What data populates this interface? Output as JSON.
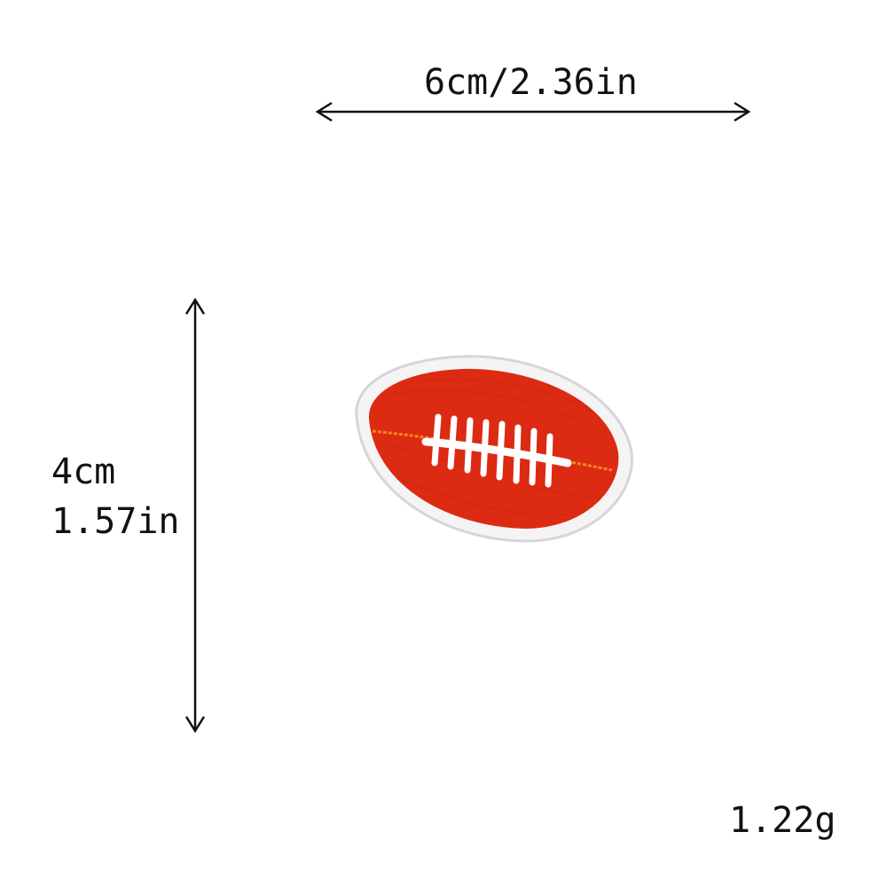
{
  "dimensions": {
    "width_label": "6cm/2.36in",
    "height_label_cm": "4cm",
    "height_label_in": "1.57in"
  },
  "product": {
    "weight_label": "1.22g",
    "patch_icon": "football-patch-icon"
  },
  "colors": {
    "patch_fill": "#dd2a12",
    "patch_border": "#dcdcdc",
    "lace_color": "#ffffff",
    "seam_color": "#f08a1a",
    "arrow_color": "#111111"
  }
}
